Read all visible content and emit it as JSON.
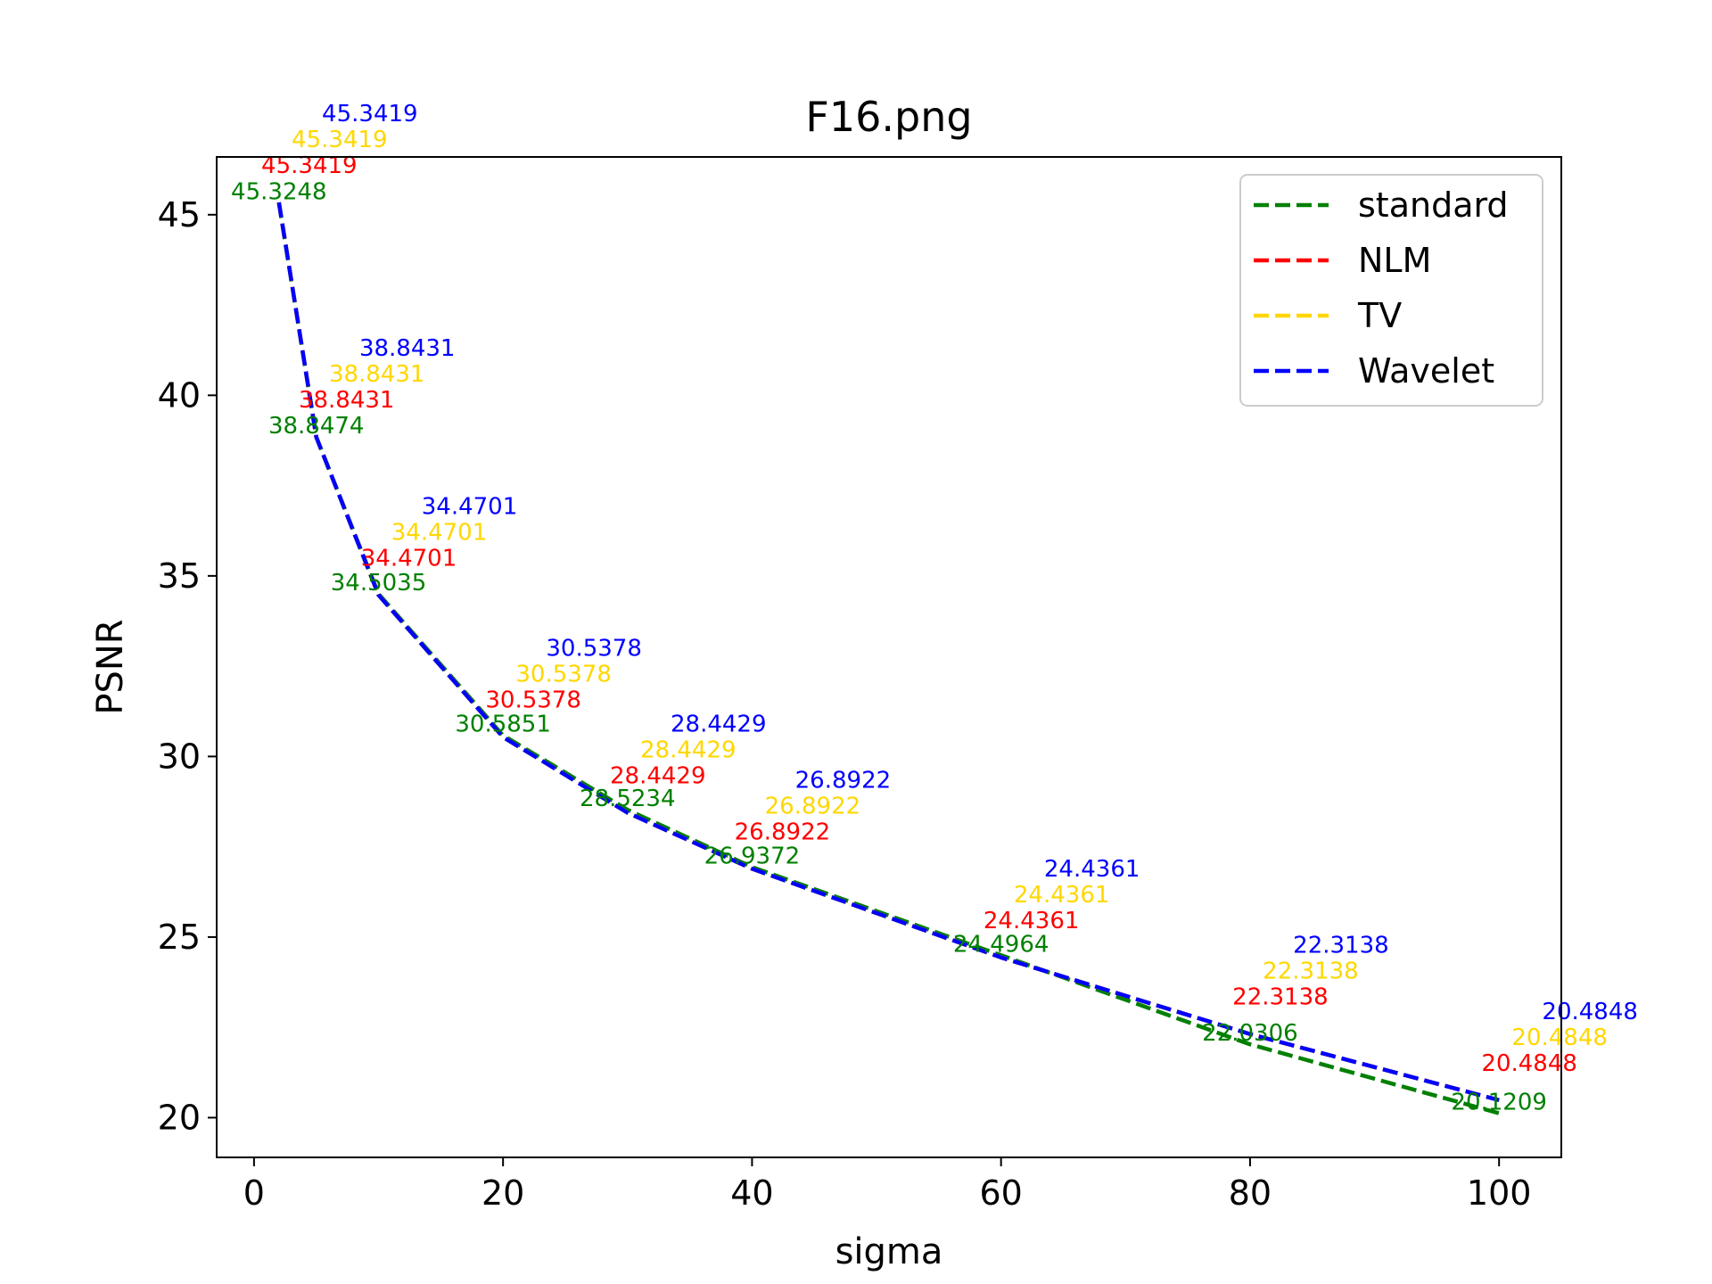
{
  "chart_data": {
    "type": "line",
    "title": "F16.png",
    "xlabel": "sigma",
    "ylabel": "PSNR",
    "xlim": [
      -3,
      105
    ],
    "ylim": [
      18.9,
      46.6
    ],
    "x_ticks": [
      0,
      20,
      40,
      60,
      80,
      100
    ],
    "y_ticks": [
      20,
      25,
      30,
      35,
      40,
      45
    ],
    "x": [
      2,
      5,
      10,
      20,
      30,
      40,
      60,
      80,
      100
    ],
    "legend_position": "top-right",
    "grid": false,
    "series": [
      {
        "name": "standard",
        "color": "#008000",
        "values": [
          45.3248,
          38.8474,
          34.5035,
          30.5851,
          28.5234,
          26.9372,
          24.4964,
          22.0306,
          20.1209
        ],
        "labels": [
          "45.3248",
          "38.8474",
          "34.5035",
          "30.5851",
          "28.5234",
          "26.9372",
          "24.4964",
          "22.0306",
          "20.1209"
        ]
      },
      {
        "name": "NLM",
        "color": "#ff0000",
        "values": [
          45.3419,
          38.8431,
          34.4701,
          30.5378,
          28.4429,
          26.8922,
          24.4361,
          22.3138,
          20.4848
        ],
        "labels": [
          "45.3419",
          "38.8431",
          "34.4701",
          "30.5378",
          "28.4429",
          "26.8922",
          "24.4361",
          "22.3138",
          "20.4848"
        ]
      },
      {
        "name": "TV",
        "color": "#ffd700",
        "values": [
          45.3419,
          38.8431,
          34.4701,
          30.5378,
          28.4429,
          26.8922,
          24.4361,
          22.3138,
          20.4848
        ],
        "labels": [
          "45.3419",
          "38.8431",
          "34.4701",
          "30.5378",
          "28.4429",
          "26.8922",
          "24.4361",
          "22.3138",
          "20.4848"
        ]
      },
      {
        "name": "Wavelet",
        "color": "#0000ff",
        "values": [
          45.3419,
          38.8431,
          34.4701,
          30.5378,
          28.4429,
          26.8922,
          24.4361,
          22.3138,
          20.4848
        ],
        "labels": [
          "45.3419",
          "38.8431",
          "34.4701",
          "30.5378",
          "28.4429",
          "26.8922",
          "24.4361",
          "22.3138",
          "20.4848"
        ]
      }
    ]
  }
}
